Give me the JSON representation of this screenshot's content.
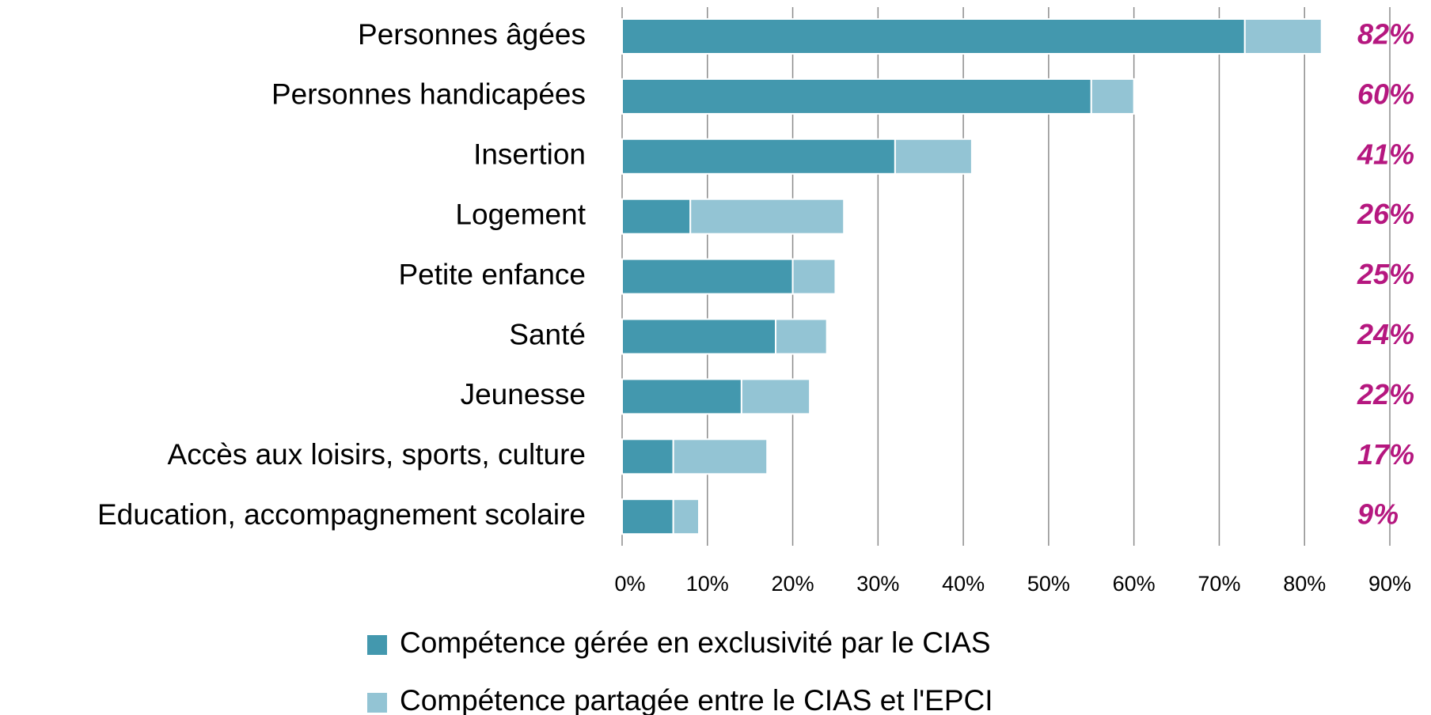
{
  "chart_data": {
    "type": "stacked-barh",
    "categories": [
      "Personnes âgées",
      "Personnes handicapées",
      "Insertion",
      "Logement",
      "Petite enfance",
      "Santé",
      "Jeunesse",
      "Accès aux loisirs, sports, culture",
      "Education, accompagnement scolaire"
    ],
    "series": [
      {
        "name": "Compétence gérée en exclusivité par le CIAS",
        "color": "#4398ae",
        "values": [
          73,
          55,
          32,
          8,
          20,
          18,
          14,
          6,
          6
        ]
      },
      {
        "name": "Compétence partagée entre le CIAS et l'EPCI",
        "color": "#93c4d4",
        "values": [
          9,
          5,
          9,
          18,
          5,
          6,
          8,
          11,
          3
        ]
      }
    ],
    "totals": [
      82,
      60,
      41,
      26,
      25,
      24,
      22,
      17,
      9
    ],
    "total_labels": [
      "82%",
      "60%",
      "41%",
      "26%",
      "25%",
      "24%",
      "22%",
      "17%",
      "9%"
    ],
    "total_color": "#b5177f",
    "xlim": [
      0,
      90
    ],
    "xticks": [
      {
        "value": 0,
        "label": "0%"
      },
      {
        "value": 10,
        "label": "10%"
      },
      {
        "value": 20,
        "label": "20%"
      },
      {
        "value": 30,
        "label": "30%"
      },
      {
        "value": 40,
        "label": "40%"
      },
      {
        "value": 50,
        "label": "50%"
      },
      {
        "value": 60,
        "label": "60%"
      },
      {
        "value": 70,
        "label": "70%"
      },
      {
        "value": 80,
        "label": "80%"
      },
      {
        "value": 90,
        "label": "90%"
      }
    ],
    "grid": true,
    "legend": "bottom"
  }
}
